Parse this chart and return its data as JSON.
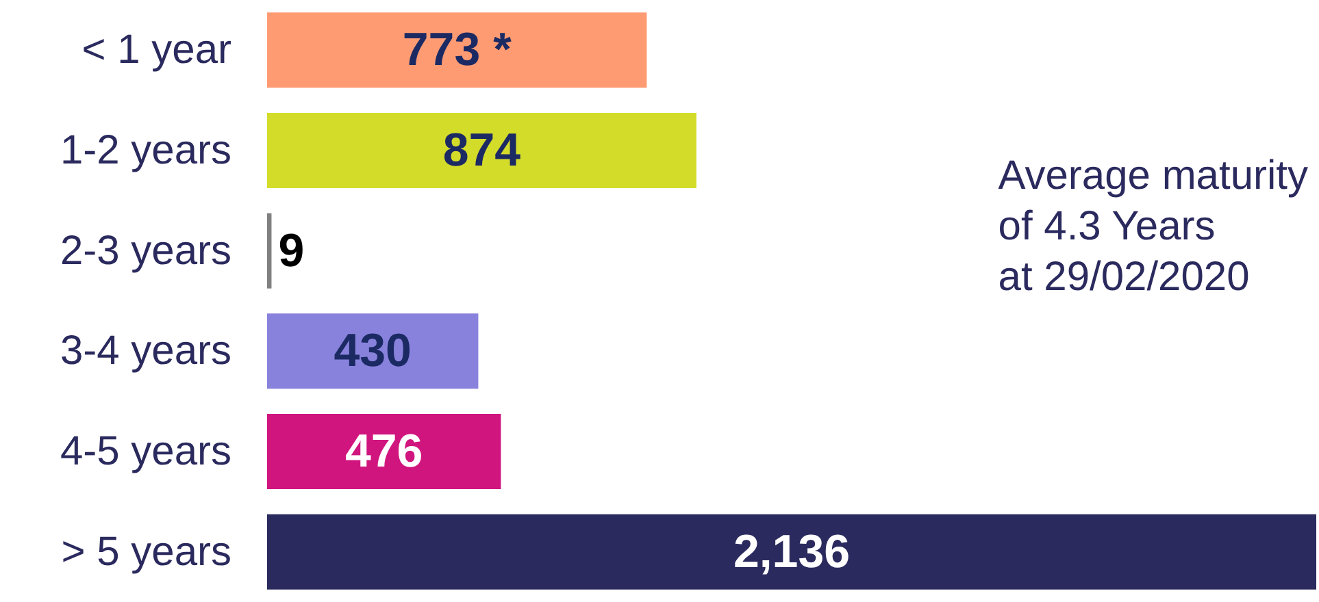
{
  "chart_data": {
    "type": "bar",
    "orientation": "horizontal",
    "categories": [
      "< 1 year",
      "1-2 years",
      "2-3 years",
      "3-4 years",
      "4-5 years",
      "> 5 years"
    ],
    "values": [
      773,
      874,
      9,
      430,
      476,
      2136
    ],
    "colors": [
      "#ff9b73",
      "#d4dc2a",
      "#808080",
      "#8882dd",
      "#d0157f",
      "#2b2a5e"
    ],
    "value_labels": [
      "773 *",
      "874",
      "9",
      "430",
      "476",
      "2,136"
    ],
    "annotations": [
      "Average maturity\nof 4.3 Years\nat 29/02/2020"
    ]
  }
}
